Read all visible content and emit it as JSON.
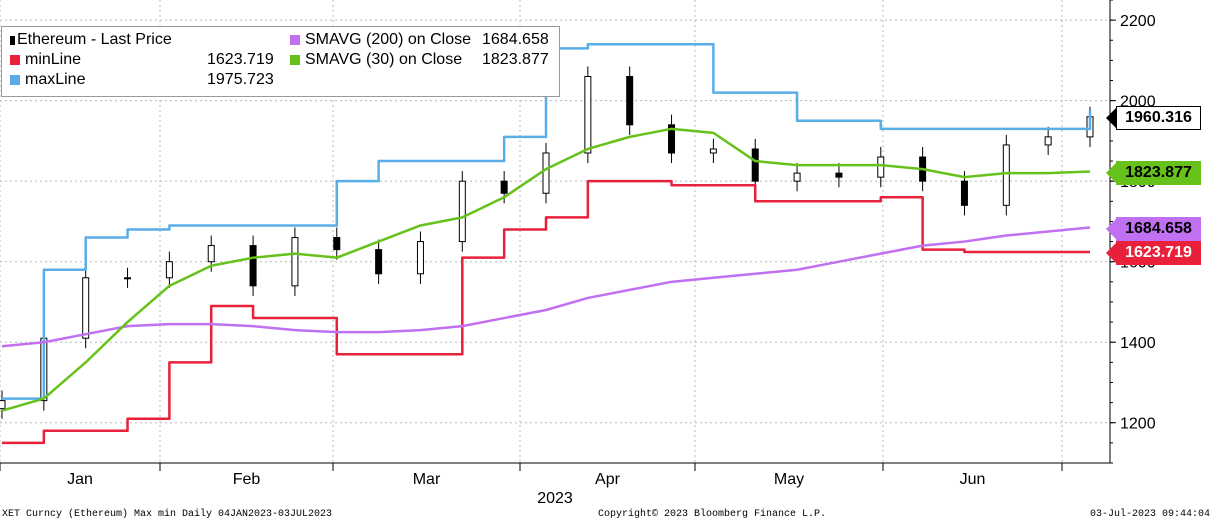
{
  "footer": {
    "left": "XET Curncy (Ethereum) Max min  Daily 04JAN2023-03JUL2023",
    "center": "Copyright© 2023 Bloomberg Finance L.P.",
    "right": "03-Jul-2023 09:44:04"
  },
  "legend": {
    "items": [
      {
        "label": "Ethereum - Last Price",
        "value": "",
        "color": "#000000"
      },
      {
        "label": "minLine",
        "value": "1623.719",
        "color": "#e8203a"
      },
      {
        "label": "maxLine",
        "value": "1975.723",
        "color": "#5aaee8"
      },
      {
        "label": "SMAVG (200)  on Close",
        "value": "1684.658",
        "color": "#c070f0"
      },
      {
        "label": "SMAVG (30)  on Close",
        "value": "1823.877",
        "color": "#66c21a"
      }
    ]
  },
  "tags": [
    {
      "text": "1960.316",
      "bg": "#ffffff",
      "border": "#000000",
      "text_color": "#000000"
    },
    {
      "text": "1823.877",
      "bg": "#66c21a",
      "border": "#66c21a",
      "text_color": "#000000"
    },
    {
      "text": "1684.658",
      "bg": "#c070f0",
      "border": "#c070f0",
      "text_color": "#000000"
    },
    {
      "text": "1623.719",
      "bg": "#e8203a",
      "border": "#e8203a",
      "text_color": "#ffffff"
    }
  ],
  "chart_data": {
    "type": "line",
    "title": "",
    "xlabel": "2023",
    "ylabel": "",
    "ylim": [
      1100,
      2250
    ],
    "yticks": [
      1200,
      1400,
      1600,
      1800,
      2000,
      2200
    ],
    "xtick_labels": [
      "Jan",
      "Feb",
      "Mar",
      "Apr",
      "May",
      "Jun"
    ],
    "x": [
      "2023-01-04",
      "2023-01-11",
      "2023-01-18",
      "2023-01-25",
      "2023-02-01",
      "2023-02-08",
      "2023-02-15",
      "2023-02-22",
      "2023-03-01",
      "2023-03-08",
      "2023-03-15",
      "2023-03-22",
      "2023-03-29",
      "2023-04-05",
      "2023-04-12",
      "2023-04-19",
      "2023-04-26",
      "2023-05-03",
      "2023-05-10",
      "2023-05-17",
      "2023-05-24",
      "2023-05-31",
      "2023-06-07",
      "2023-06-14",
      "2023-06-21",
      "2023-06-28",
      "2023-07-03"
    ],
    "series": [
      {
        "name": "Ethereum - Last Price",
        "color": "#000000",
        "style": "candles",
        "values": [
          1255,
          1410,
          1560,
          1560,
          1600,
          1640,
          1540,
          1660,
          1630,
          1570,
          1650,
          1800,
          1770,
          1870,
          2060,
          1940,
          1870,
          1880,
          1800,
          1820,
          1810,
          1860,
          1800,
          1740,
          1890,
          1910,
          1960
        ]
      },
      {
        "name": "minLine",
        "color": "#e8203a",
        "style": "line",
        "values": [
          1150,
          1180,
          1180,
          1210,
          1350,
          1490,
          1460,
          1460,
          1370,
          1370,
          1370,
          1610,
          1680,
          1710,
          1800,
          1800,
          1790,
          1790,
          1750,
          1750,
          1750,
          1760,
          1630,
          1624,
          1624,
          1624,
          1624
        ]
      },
      {
        "name": "maxLine",
        "color": "#5aaee8",
        "style": "line",
        "values": [
          1260,
          1580,
          1660,
          1680,
          1690,
          1690,
          1690,
          1690,
          1800,
          1850,
          1850,
          1850,
          1910,
          2130,
          2140,
          2140,
          2140,
          2020,
          2020,
          1950,
          1950,
          1930,
          1930,
          1930,
          1930,
          1930,
          1975
        ]
      },
      {
        "name": "SMAVG (200)  on Close",
        "color": "#c070f0",
        "style": "line",
        "values": [
          1390,
          1400,
          1420,
          1440,
          1445,
          1445,
          1440,
          1430,
          1425,
          1425,
          1430,
          1440,
          1460,
          1480,
          1510,
          1530,
          1550,
          1560,
          1570,
          1580,
          1600,
          1620,
          1640,
          1650,
          1665,
          1675,
          1685
        ]
      },
      {
        "name": "SMAVG (30)  on Close",
        "color": "#66c21a",
        "style": "line",
        "values": [
          1230,
          1260,
          1350,
          1450,
          1540,
          1590,
          1610,
          1620,
          1610,
          1650,
          1690,
          1710,
          1760,
          1830,
          1880,
          1910,
          1930,
          1920,
          1850,
          1840,
          1840,
          1840,
          1830,
          1810,
          1820,
          1820,
          1824
        ]
      }
    ]
  }
}
